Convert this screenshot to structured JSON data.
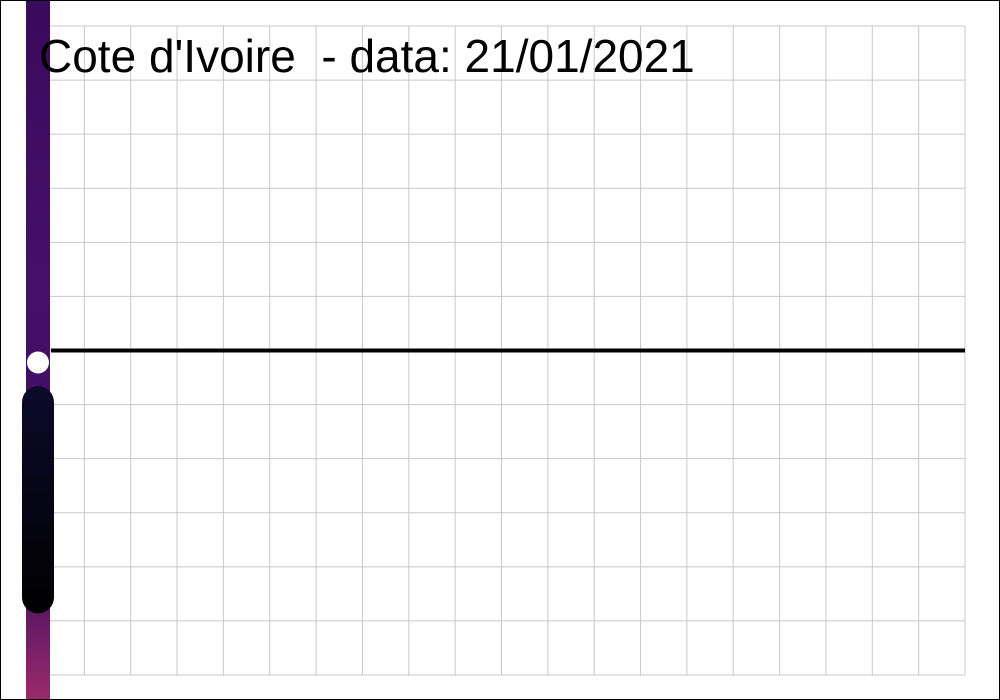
{
  "chart_data": {
    "type": "line",
    "title": "Cote d'Ivoire  - data: 21/01/2021",
    "grid": true,
    "grid_columns": 20,
    "grid_rows": 12,
    "reference_line_level": 0.5,
    "colorbar": {
      "orientation": "vertical",
      "position": "left",
      "colors": [
        "#3a0a5e",
        "#451068",
        "#3d0c62",
        "#9a2a6a"
      ],
      "marker_level": 0.5,
      "bar_top_level": 0.445,
      "bar_bottom_level": 0.095
    },
    "colors": {
      "grid": "#c8c8c8",
      "line": "#000000",
      "marker": "#ffffff",
      "bar": "#0a0518"
    }
  }
}
